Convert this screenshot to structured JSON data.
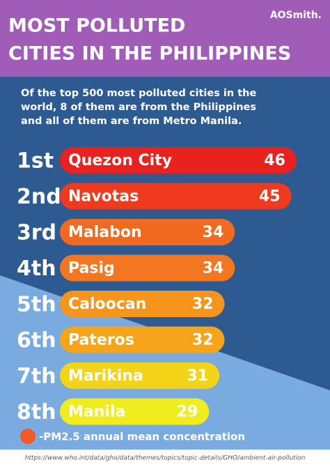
{
  "chart_data": {
    "type": "bar",
    "title_lines": [
      "MOST POLLUTED",
      "CITIES IN THE PHILIPPINES"
    ],
    "brand": "AOSmith.",
    "subtitle_lines": [
      "Of the top 500 most polluted cities in the",
      "world, 8 of them are from the Philippines",
      "and all of them are from Metro Manila."
    ],
    "ranks": [
      "1st",
      "2nd",
      "3rd",
      "4th",
      "5th",
      "6th",
      "7th",
      "8th"
    ],
    "categories": [
      "Quezon City",
      "Navotas",
      "Malabon",
      "Pasig",
      "Caloocan",
      "Pateros",
      "Marikina",
      "Manila"
    ],
    "values": [
      46,
      45,
      34,
      34,
      32,
      32,
      31,
      29
    ],
    "colors": [
      "#e8231f",
      "#ef3a1d",
      "#f26a1f",
      "#f37620",
      "#f5951c",
      "#f6a51b",
      "#f4d418",
      "#f1ec1e"
    ],
    "legend": "-PM2.5 annual mean concentration",
    "legend_color": "#f15a22",
    "source": "https://www.who.int/data/gho/data/themes/topics/topic-details/GHO/ambient-air-pollution"
  }
}
